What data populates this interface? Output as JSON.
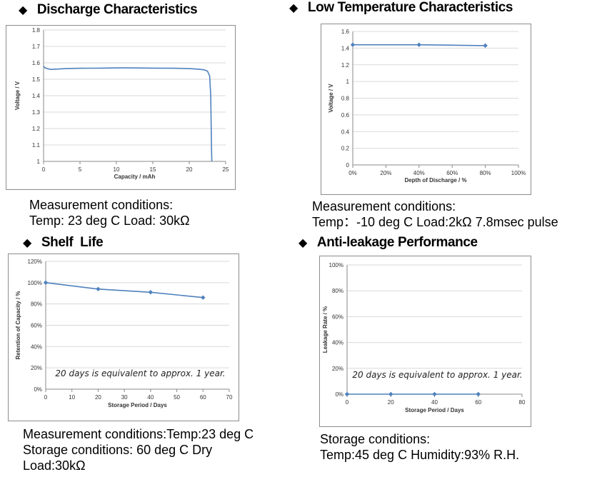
{
  "sections": {
    "discharge": {
      "heading": "Discharge Characteristics",
      "conditions": [
        "Measurement conditions:",
        "Temp: 23 deg C   Load: 30kΩ"
      ]
    },
    "lowtemp": {
      "heading": "Low Temperature Characteristics",
      "conditions": [
        "Measurement conditions:",
        "Temp：-10 deg C     Load:2kΩ   7.8msec pulse"
      ]
    },
    "shelf": {
      "heading": "Shelf  Life",
      "conditions": [
        "Measurement conditions:Temp:23 deg C",
        "Storage conditions: 60 deg C Dry",
        "Load:30kΩ"
      ]
    },
    "leakage": {
      "heading": "Anti-leakage Performance",
      "conditions": [
        "Storage conditions:",
        "Temp:45 deg C   Humidity:93% R.H."
      ]
    }
  },
  "chart_data": [
    {
      "id": "discharge",
      "type": "line",
      "title": "Discharge Characteristics",
      "xlabel": "Capacity  /  mAh",
      "ylabel": "Voltage  /  V",
      "xlim": [
        0,
        25
      ],
      "ylim": [
        1.0,
        1.8
      ],
      "xticks": [
        0,
        5,
        10,
        15,
        20,
        25
      ],
      "yticks": [
        1,
        1.1,
        1.2,
        1.3,
        1.4,
        1.5,
        1.6,
        1.7,
        1.8
      ],
      "ytick_labels": [
        "1",
        "1.1",
        "1.2",
        "1.3",
        "1.4",
        "1.5",
        "1.6",
        "1.7",
        "1.8"
      ],
      "xtick_labels": [
        "0",
        "5",
        "10",
        "15",
        "20",
        "25"
      ],
      "markers": false,
      "grid": true,
      "line_color": "#4f81bd",
      "series": [
        {
          "name": "Voltage",
          "x": [
            0,
            0.2,
            0.5,
            1,
            2,
            3,
            5,
            8,
            10,
            12,
            15,
            18,
            20,
            21,
            22,
            22.5,
            22.8,
            22.95,
            23.0,
            23.05,
            23.1
          ],
          "y": [
            1.58,
            1.57,
            1.565,
            1.56,
            1.562,
            1.565,
            1.567,
            1.568,
            1.569,
            1.569,
            1.568,
            1.567,
            1.565,
            1.562,
            1.558,
            1.55,
            1.52,
            1.4,
            1.25,
            1.1,
            1.0
          ]
        }
      ]
    },
    {
      "id": "lowtemp",
      "type": "line",
      "title": "Low Temperature Characteristics",
      "xlabel": "Depth of Discharge / %",
      "ylabel": "Voltage  /  V",
      "xlim": [
        0,
        100
      ],
      "ylim": [
        0,
        1.6
      ],
      "xticks": [
        0,
        20,
        40,
        60,
        80,
        100
      ],
      "xtick_labels": [
        "0%",
        "20%",
        "40%",
        "60%",
        "80%",
        "100%"
      ],
      "yticks": [
        0,
        0.2,
        0.4,
        0.6,
        0.8,
        1,
        1.2,
        1.4,
        1.6
      ],
      "ytick_labels": [
        "0",
        "0.2",
        "0.4",
        "0.6",
        "0.8",
        "1",
        "1.2",
        "1.4",
        "1.6"
      ],
      "markers": true,
      "grid": true,
      "line_color": "#4f81bd",
      "series": [
        {
          "name": "Voltage",
          "x": [
            0,
            40,
            80
          ],
          "y": [
            1.44,
            1.44,
            1.43
          ]
        }
      ]
    },
    {
      "id": "shelf",
      "type": "line",
      "title": "Shelf  Life",
      "xlabel": "Storage Period / Days",
      "ylabel": "Retention of Capacity / %",
      "xlim": [
        0,
        70
      ],
      "ylim": [
        0,
        120
      ],
      "xticks": [
        0,
        10,
        20,
        30,
        40,
        50,
        60,
        70
      ],
      "xtick_labels": [
        "0",
        "10",
        "20",
        "30",
        "40",
        "50",
        "60",
        "70"
      ],
      "yticks": [
        0,
        20,
        40,
        60,
        80,
        100,
        120
      ],
      "ytick_labels": [
        "0%",
        "20%",
        "40%",
        "60%",
        "80%",
        "100%",
        "120%"
      ],
      "markers": true,
      "grid": true,
      "line_color": "#4f81bd",
      "annotation": "20 days is equivalent to approx. 1 year.",
      "series": [
        {
          "name": "Retention",
          "x": [
            0,
            20,
            40,
            60
          ],
          "y": [
            100,
            94,
            91,
            86
          ]
        }
      ]
    },
    {
      "id": "leakage",
      "type": "line",
      "title": "Anti-leakage Performance",
      "xlabel": "Storage Period / Days",
      "ylabel": "Leakage Rate / %",
      "xlim": [
        0,
        80
      ],
      "ylim": [
        0,
        100
      ],
      "xticks": [
        0,
        20,
        40,
        60,
        80
      ],
      "xtick_labels": [
        "0",
        "20",
        "40",
        "60",
        "80"
      ],
      "yticks": [
        0,
        20,
        40,
        60,
        80,
        100
      ],
      "ytick_labels": [
        "0%",
        "20%",
        "40%",
        "60%",
        "80%",
        "100%"
      ],
      "markers": true,
      "grid": true,
      "line_color": "#4f81bd",
      "annotation": "20 days is equivalent to approx. 1 year.",
      "series": [
        {
          "name": "Leakage",
          "x": [
            0,
            20,
            40,
            60
          ],
          "y": [
            0,
            0,
            0,
            0
          ]
        }
      ]
    }
  ]
}
